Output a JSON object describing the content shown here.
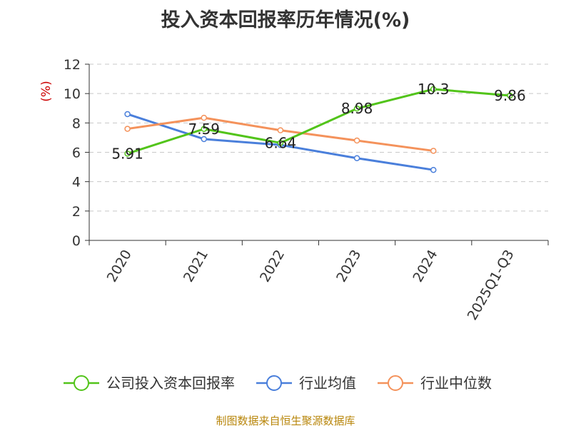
{
  "chart_data": {
    "type": "line",
    "title": "投入资本回报率历年情况(%)",
    "ylabel": "(%)",
    "xlabel": "",
    "ylim": [
      0,
      12
    ],
    "yticks": [
      0,
      2,
      4,
      6,
      8,
      10,
      12
    ],
    "grid": true,
    "legend_position": "bottom",
    "categories": [
      "2020",
      "2021",
      "2022",
      "2023",
      "2024",
      "2025Q1-Q3"
    ],
    "series": [
      {
        "name": "公司投入资本回报率",
        "color": "#52c41a",
        "values": [
          5.91,
          7.59,
          6.64,
          8.98,
          10.3,
          9.86
        ],
        "labels": [
          "5.91",
          "7.59",
          "6.64",
          "8.98",
          "10.3",
          "9.86"
        ]
      },
      {
        "name": "行业均值",
        "color": "#4a7fdb",
        "values": [
          8.6,
          6.9,
          6.5,
          5.6,
          4.8,
          null
        ]
      },
      {
        "name": "行业中位数",
        "color": "#f4925b",
        "values": [
          7.6,
          8.35,
          7.5,
          6.8,
          6.1,
          null
        ]
      }
    ]
  },
  "source_note": "制图数据来自恒生聚源数据库"
}
